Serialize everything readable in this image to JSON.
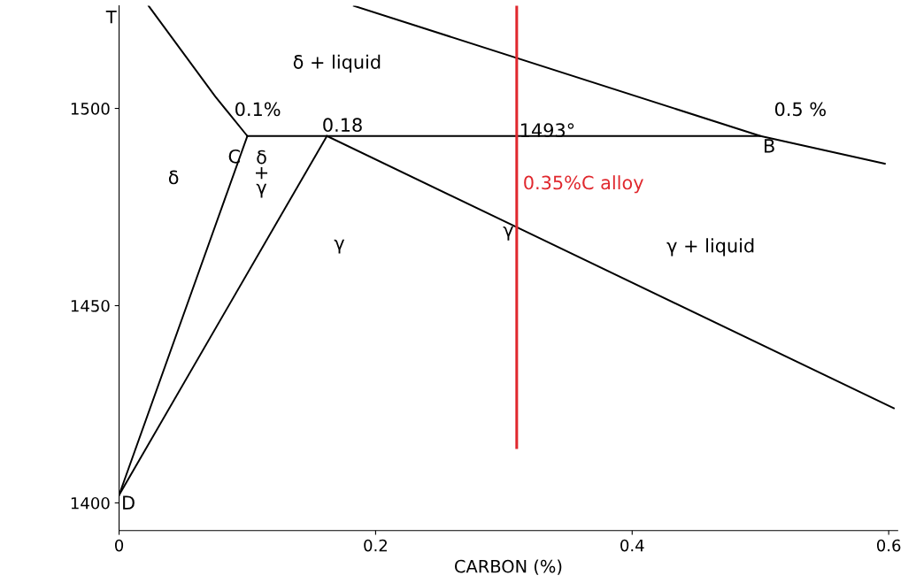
{
  "chart_data": {
    "type": "line",
    "xlabel": "CARBON (%)",
    "ylabel": "T",
    "xlim": [
      0,
      0.607
    ],
    "ylim": [
      1393,
      1526
    ],
    "xticks": [
      0,
      0.2,
      0.4,
      0.6
    ],
    "yticks": [
      1400,
      1450,
      1500
    ],
    "grid": false,
    "legend": false,
    "marker": "none",
    "line_style": "solid",
    "series": [
      {
        "color": "#000000",
        "x": [
          0.023,
          0.075,
          0.1
        ],
        "values": [
          1526,
          1503,
          1493
        ]
      },
      {
        "color": "#000000",
        "x": [
          0.1,
          0.5
        ],
        "values": [
          1493,
          1493
        ]
      },
      {
        "color": "#000000",
        "x": [
          0.183,
          0.5,
          0.597
        ],
        "values": [
          1526,
          1493,
          1486
        ]
      },
      {
        "color": "#000000",
        "x": [
          0.162,
          0.604
        ],
        "values": [
          1493,
          1424
        ]
      },
      {
        "color": "#000000",
        "x": [
          0,
          0.1
        ],
        "values": [
          1402,
          1493
        ]
      },
      {
        "color": "#000000",
        "x": [
          0,
          0.162
        ],
        "values": [
          1402,
          1493
        ]
      },
      {
        "name": "0.35%C alloy",
        "color": "#e0282e",
        "x": [
          0.31,
          0.31
        ],
        "values": [
          1526,
          1414
        ]
      }
    ],
    "annotations": [
      "δ + liquid",
      "0.1%",
      "0.18",
      "C",
      "δ",
      "δ\n+\nγ",
      "γ",
      "γ",
      "γ + liquid",
      "1493°",
      "0.5 %",
      "B",
      "D"
    ]
  }
}
